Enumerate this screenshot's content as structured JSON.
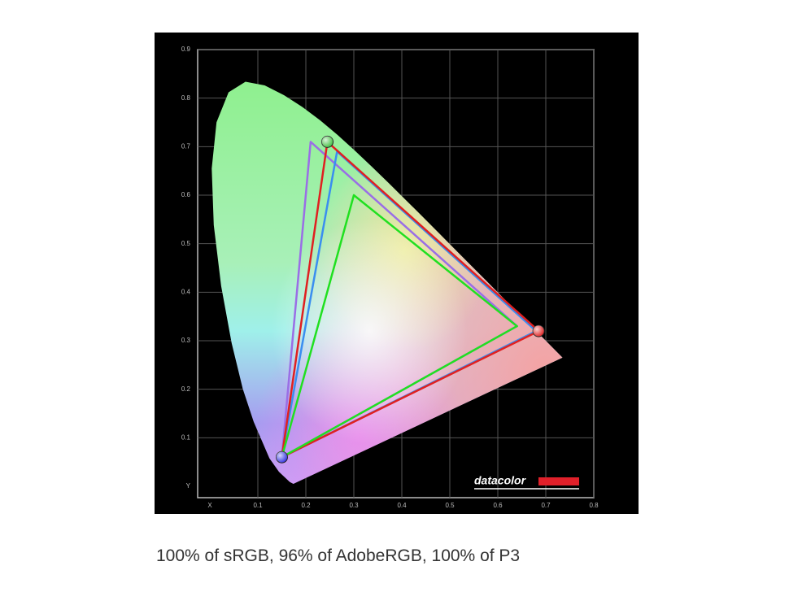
{
  "chart_data": {
    "type": "gamut",
    "caption": "100% of sRGB, 96% of AdobeRGB, 100% of P3",
    "watermark": "datacolor",
    "xlabel": "X",
    "ylabel": "Y",
    "xlim": [
      0,
      0.8
    ],
    "ylim": [
      0,
      0.9
    ],
    "xticks": [
      0.1,
      0.2,
      0.3,
      0.4,
      0.5,
      0.6,
      0.7,
      0.8
    ],
    "yticks": [
      0.1,
      0.2,
      0.3,
      0.4,
      0.5,
      0.6,
      0.7,
      0.8,
      0.9
    ],
    "grid": true,
    "locus": {
      "x": [
        0.1741,
        0.1666,
        0.144,
        0.1241,
        0.0913,
        0.0687,
        0.0454,
        0.0235,
        0.0082,
        0.0039,
        0.0139,
        0.0389,
        0.0743,
        0.1142,
        0.1547,
        0.1929,
        0.2296,
        0.2658,
        0.3016,
        0.3373,
        0.3731,
        0.4087,
        0.4441,
        0.4788,
        0.5125,
        0.5448,
        0.5752,
        0.6029,
        0.627,
        0.6482,
        0.6658,
        0.6801,
        0.7347
      ],
      "y": [
        0.005,
        0.0089,
        0.0297,
        0.0578,
        0.1327,
        0.2007,
        0.295,
        0.4127,
        0.5384,
        0.6548,
        0.7502,
        0.812,
        0.8338,
        0.8262,
        0.8059,
        0.7816,
        0.7543,
        0.7243,
        0.6923,
        0.6589,
        0.6245,
        0.5896,
        0.5547,
        0.5202,
        0.4866,
        0.4544,
        0.4242,
        0.3965,
        0.3725,
        0.3514,
        0.334,
        0.3197,
        0.2653
      ]
    },
    "series": [
      {
        "color": "#9a6ee6",
        "x": [
          0.64,
          0.21,
          0.15
        ],
        "y": [
          0.33,
          0.71,
          0.06
        ]
      },
      {
        "color": "#3a8ef0",
        "x": [
          0.68,
          0.265,
          0.15
        ],
        "y": [
          0.32,
          0.69,
          0.06
        ]
      },
      {
        "color": "#e02020",
        "x": [
          0.685,
          0.245,
          0.15
        ],
        "y": [
          0.32,
          0.71,
          0.06
        ],
        "markers": [
          "#e02020",
          "#40c040",
          "#3030e0"
        ]
      },
      {
        "color": "#20e020",
        "x": [
          0.64,
          0.3,
          0.15
        ],
        "y": [
          0.33,
          0.6,
          0.06
        ]
      }
    ]
  }
}
